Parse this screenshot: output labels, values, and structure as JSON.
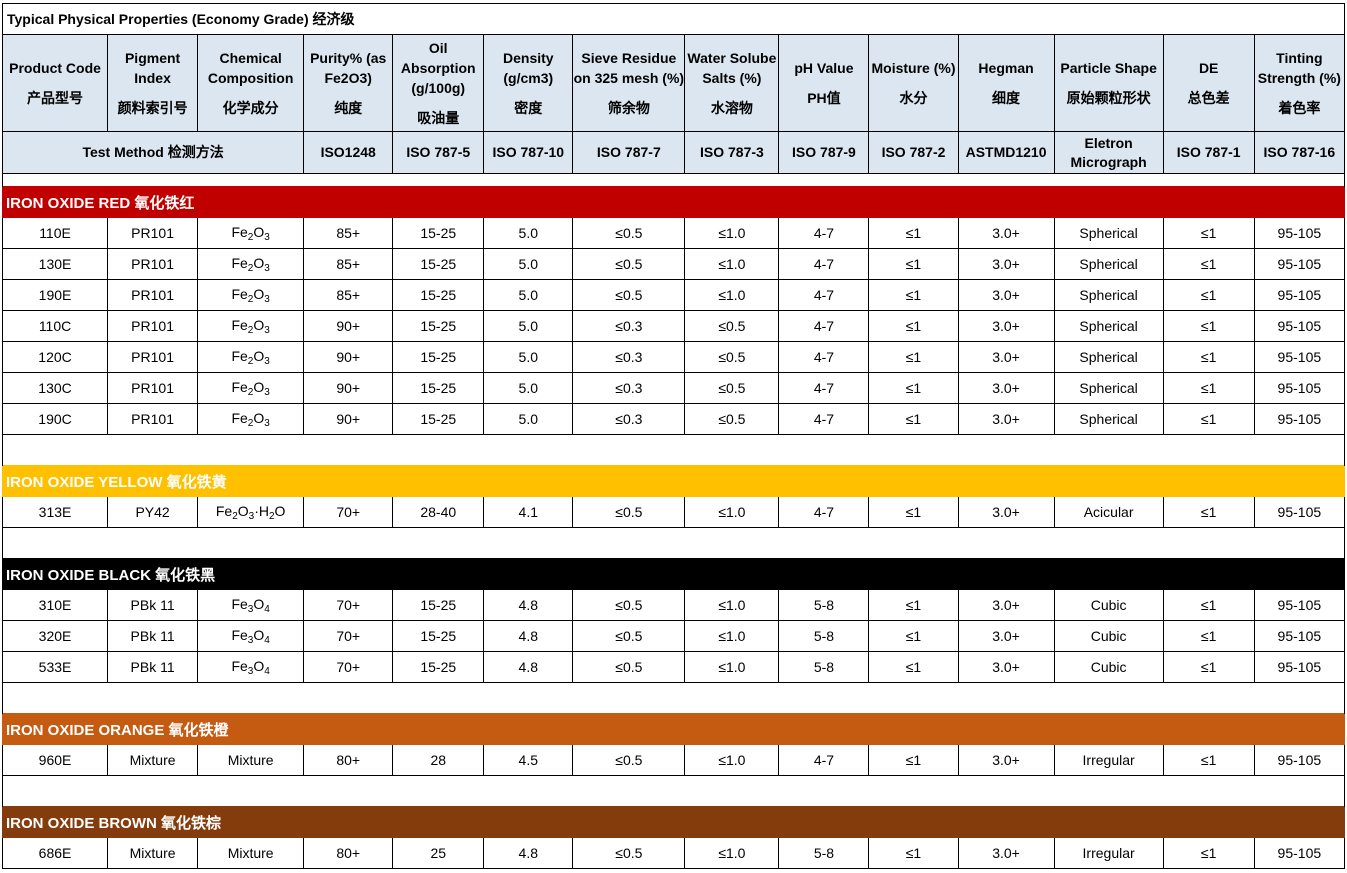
{
  "title": "Typical Physical Properties  (Economy Grade) 经济级",
  "headers": [
    {
      "en": "Product Code",
      "cn": "产品型号"
    },
    {
      "en": "Pigment Index",
      "cn": "颜料索引号"
    },
    {
      "en": "Chemical Composition",
      "cn": "化学成分"
    },
    {
      "en": "Purity% (as Fe2O3)",
      "cn": "纯度"
    },
    {
      "en": "Oil Absorption (g/100g)",
      "cn": "吸油量"
    },
    {
      "en": "Density (g/cm3)",
      "cn": "密度"
    },
    {
      "en": "Sieve Residue on 325 mesh (%)",
      "cn": "筛余物"
    },
    {
      "en": "Water Solube Salts (%)",
      "cn": "水溶物"
    },
    {
      "en": "pH Value",
      "cn": "PH值"
    },
    {
      "en": "Moisture (%)",
      "cn": "水分"
    },
    {
      "en": "Hegman",
      "cn": "细度"
    },
    {
      "en": "Particle Shape",
      "cn": "原始颗粒形状"
    },
    {
      "en": "DE",
      "cn": "总色差"
    },
    {
      "en": "Tinting Strength (%)",
      "cn": "着色率"
    }
  ],
  "test_method": {
    "label": "Test Method 检测方法",
    "values": [
      "ISO1248",
      "ISO 787-5",
      "ISO 787-10",
      "ISO 787-7",
      "ISO 787-3",
      "ISO 787-9",
      "ISO 787-2",
      "ASTMD1210",
      "Eletron Micrograph",
      "ISO 787-1",
      "ISO 787-16"
    ]
  },
  "colors": {
    "header_bg": "#dce6f1",
    "red": "#c00000",
    "yellow": "#ffc000",
    "black": "#000000",
    "orange": "#c55a11",
    "brown": "#843c0c"
  },
  "categories": [
    {
      "name": "IRON OXIDE RED  氧化铁红",
      "color": "#c00000",
      "rows": [
        {
          "code": "110E",
          "pigment": "PR101",
          "comp": {
            "a": "Fe",
            "s1": "2",
            "b": "O",
            "s2": "3"
          },
          "purity": "85+",
          "oil": "15-25",
          "density": "5.0",
          "sieve": "≤0.5",
          "water": "≤1.0",
          "ph": "4-7",
          "moisture": "≤1",
          "hegman": "3.0+",
          "shape": "Spherical",
          "de": "≤1",
          "tint": "95-105"
        },
        {
          "code": "130E",
          "pigment": "PR101",
          "comp": {
            "a": "Fe",
            "s1": "2",
            "b": "O",
            "s2": "3"
          },
          "purity": "85+",
          "oil": "15-25",
          "density": "5.0",
          "sieve": "≤0.5",
          "water": "≤1.0",
          "ph": "4-7",
          "moisture": "≤1",
          "hegman": "3.0+",
          "shape": "Spherical",
          "de": "≤1",
          "tint": "95-105"
        },
        {
          "code": "190E",
          "pigment": "PR101",
          "comp": {
            "a": "Fe",
            "s1": "2",
            "b": "O",
            "s2": "3"
          },
          "purity": "85+",
          "oil": "15-25",
          "density": "5.0",
          "sieve": "≤0.5",
          "water": "≤1.0",
          "ph": "4-7",
          "moisture": "≤1",
          "hegman": "3.0+",
          "shape": "Spherical",
          "de": "≤1",
          "tint": "95-105"
        },
        {
          "code": "110C",
          "pigment": "PR101",
          "comp": {
            "a": "Fe",
            "s1": "2",
            "b": "O",
            "s2": "3"
          },
          "purity": "90+",
          "oil": "15-25",
          "density": "5.0",
          "sieve": "≤0.3",
          "water": "≤0.5",
          "ph": "4-7",
          "moisture": "≤1",
          "hegman": "3.0+",
          "shape": "Spherical",
          "de": "≤1",
          "tint": "95-105"
        },
        {
          "code": "120C",
          "pigment": "PR101",
          "comp": {
            "a": "Fe",
            "s1": "2",
            "b": "O",
            "s2": "3"
          },
          "purity": "90+",
          "oil": "15-25",
          "density": "5.0",
          "sieve": "≤0.3",
          "water": "≤0.5",
          "ph": "4-7",
          "moisture": "≤1",
          "hegman": "3.0+",
          "shape": "Spherical",
          "de": "≤1",
          "tint": "95-105"
        },
        {
          "code": "130C",
          "pigment": "PR101",
          "comp": {
            "a": "Fe",
            "s1": "2",
            "b": "O",
            "s2": "3"
          },
          "purity": "90+",
          "oil": "15-25",
          "density": "5.0",
          "sieve": "≤0.3",
          "water": "≤0.5",
          "ph": "4-7",
          "moisture": "≤1",
          "hegman": "3.0+",
          "shape": "Spherical",
          "de": "≤1",
          "tint": "95-105"
        },
        {
          "code": "190C",
          "pigment": "PR101",
          "comp": {
            "a": "Fe",
            "s1": "2",
            "b": "O",
            "s2": "3"
          },
          "purity": "90+",
          "oil": "15-25",
          "density": "5.0",
          "sieve": "≤0.3",
          "water": "≤0.5",
          "ph": "4-7",
          "moisture": "≤1",
          "hegman": "3.0+",
          "shape": "Spherical",
          "de": "≤1",
          "tint": "95-105"
        }
      ]
    },
    {
      "name": "IRON OXIDE YELLOW  氧化铁黄",
      "color": "#ffc000",
      "rows": [
        {
          "code": "313E",
          "pigment": "PY42",
          "comp": {
            "a": "Fe",
            "s1": "2",
            "b": "O",
            "s2": "3",
            "c": "·H",
            "s3": "2",
            "d": "O"
          },
          "purity": "70+",
          "oil": "28-40",
          "density": "4.1",
          "sieve": "≤0.5",
          "water": "≤1.0",
          "ph": "4-7",
          "moisture": "≤1",
          "hegman": "3.0+",
          "shape": "Acicular",
          "de": "≤1",
          "tint": "95-105"
        }
      ]
    },
    {
      "name": "IRON OXIDE BLACK 氧化铁黑",
      "color": "#000000",
      "rows": [
        {
          "code": "310E",
          "pigment": "PBk 11",
          "comp": {
            "a": "Fe",
            "s1": "3",
            "b": "O",
            "s2": "4"
          },
          "purity": "70+",
          "oil": "15-25",
          "density": "4.8",
          "sieve": "≤0.5",
          "water": "≤1.0",
          "ph": "5-8",
          "moisture": "≤1",
          "hegman": "3.0+",
          "shape": "Cubic",
          "de": "≤1",
          "tint": "95-105"
        },
        {
          "code": "320E",
          "pigment": "PBk 11",
          "comp": {
            "a": "Fe",
            "s1": "3",
            "b": "O",
            "s2": "4"
          },
          "purity": "70+",
          "oil": "15-25",
          "density": "4.8",
          "sieve": "≤0.5",
          "water": "≤1.0",
          "ph": "5-8",
          "moisture": "≤1",
          "hegman": "3.0+",
          "shape": "Cubic",
          "de": "≤1",
          "tint": "95-105"
        },
        {
          "code": "533E",
          "pigment": "PBk 11",
          "comp": {
            "a": "Fe",
            "s1": "3",
            "b": "O",
            "s2": "4"
          },
          "purity": "70+",
          "oil": "15-25",
          "density": "4.8",
          "sieve": "≤0.5",
          "water": "≤1.0",
          "ph": "5-8",
          "moisture": "≤1",
          "hegman": "3.0+",
          "shape": "Cubic",
          "de": "≤1",
          "tint": "95-105"
        }
      ]
    },
    {
      "name": "IRON OXIDE ORANGE  氧化铁橙",
      "color": "#c55a11",
      "rows": [
        {
          "code": "960E",
          "pigment": "Mixture",
          "comp": {
            "text": "Mixture"
          },
          "purity": "80+",
          "oil": "28",
          "density": "4.5",
          "sieve": "≤0.5",
          "water": "≤1.0",
          "ph": "4-7",
          "moisture": "≤1",
          "hegman": "3.0+",
          "shape": "Irregular",
          "de": "≤1",
          "tint": "95-105"
        }
      ]
    },
    {
      "name": "IRON OXIDE BROWN  氧化铁棕",
      "color": "#843c0c",
      "rows": [
        {
          "code": "686E",
          "pigment": "Mixture",
          "comp": {
            "text": "Mixture"
          },
          "purity": "80+",
          "oil": "25",
          "density": "4.8",
          "sieve": "≤0.5",
          "water": "≤1.0",
          "ph": "5-8",
          "moisture": "≤1",
          "hegman": "3.0+",
          "shape": "Irregular",
          "de": "≤1",
          "tint": "95-105"
        }
      ]
    }
  ]
}
